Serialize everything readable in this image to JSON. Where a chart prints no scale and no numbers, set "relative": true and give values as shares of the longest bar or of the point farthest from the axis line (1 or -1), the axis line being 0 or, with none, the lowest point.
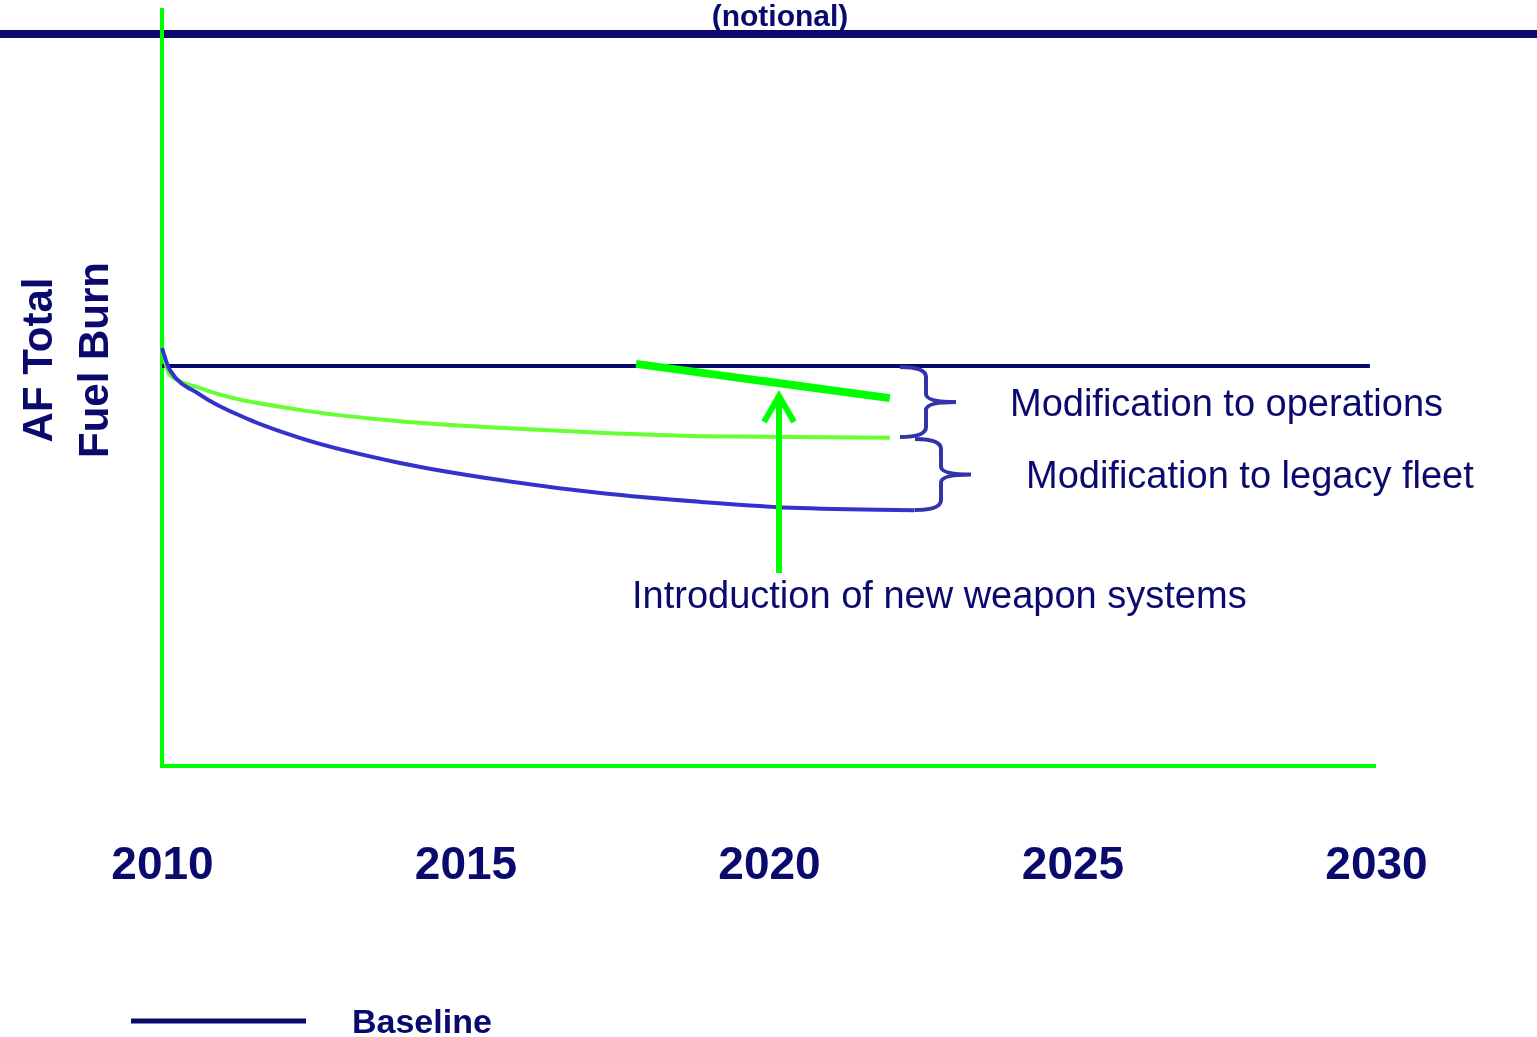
{
  "chart_data": {
    "type": "line",
    "title": "(notional)",
    "ylabel": "AF Total\nFuel Burn",
    "relative": true,
    "xlim": [
      2010,
      2030
    ],
    "xticks": [
      2010,
      2015,
      2020,
      2025,
      2030
    ],
    "legend": "bottom left",
    "line_style": "solid",
    "marker": "none",
    "series": [
      {
        "name": "Baseline",
        "color": "#0a0a6e",
        "x": [
          2010,
          2029.9
        ],
        "values": [
          0.957,
          0.957
        ]
      },
      {
        "color": "#66ff33",
        "x": [
          2010,
          2010.13,
          2010.63,
          2012.27,
          2013.92,
          2015.57,
          2017.22,
          2018.86,
          2021.99
        ],
        "values": [
          1.0,
          0.935,
          0.904,
          0.852,
          0.825,
          0.809,
          0.797,
          0.789,
          0.785
        ]
      },
      {
        "color": "#3333cc",
        "x": [
          2010,
          2010.13,
          2010.63,
          2011.45,
          2012.27,
          2013.92,
          2015.57,
          2017.22,
          2018.86,
          2020.51,
          2022.4
        ],
        "values": [
          1.0,
          0.947,
          0.888,
          0.828,
          0.785,
          0.725,
          0.684,
          0.653,
          0.632,
          0.617,
          0.612
        ]
      },
      {
        "color": "#00ff00",
        "x": [
          2017.81,
          2021.99
        ],
        "values": [
          0.962,
          0.88
        ]
      }
    ],
    "annotations": [
      "Modification to operations",
      "Modification to legacy fleet",
      "Introduction of new weapon systems"
    ]
  }
}
